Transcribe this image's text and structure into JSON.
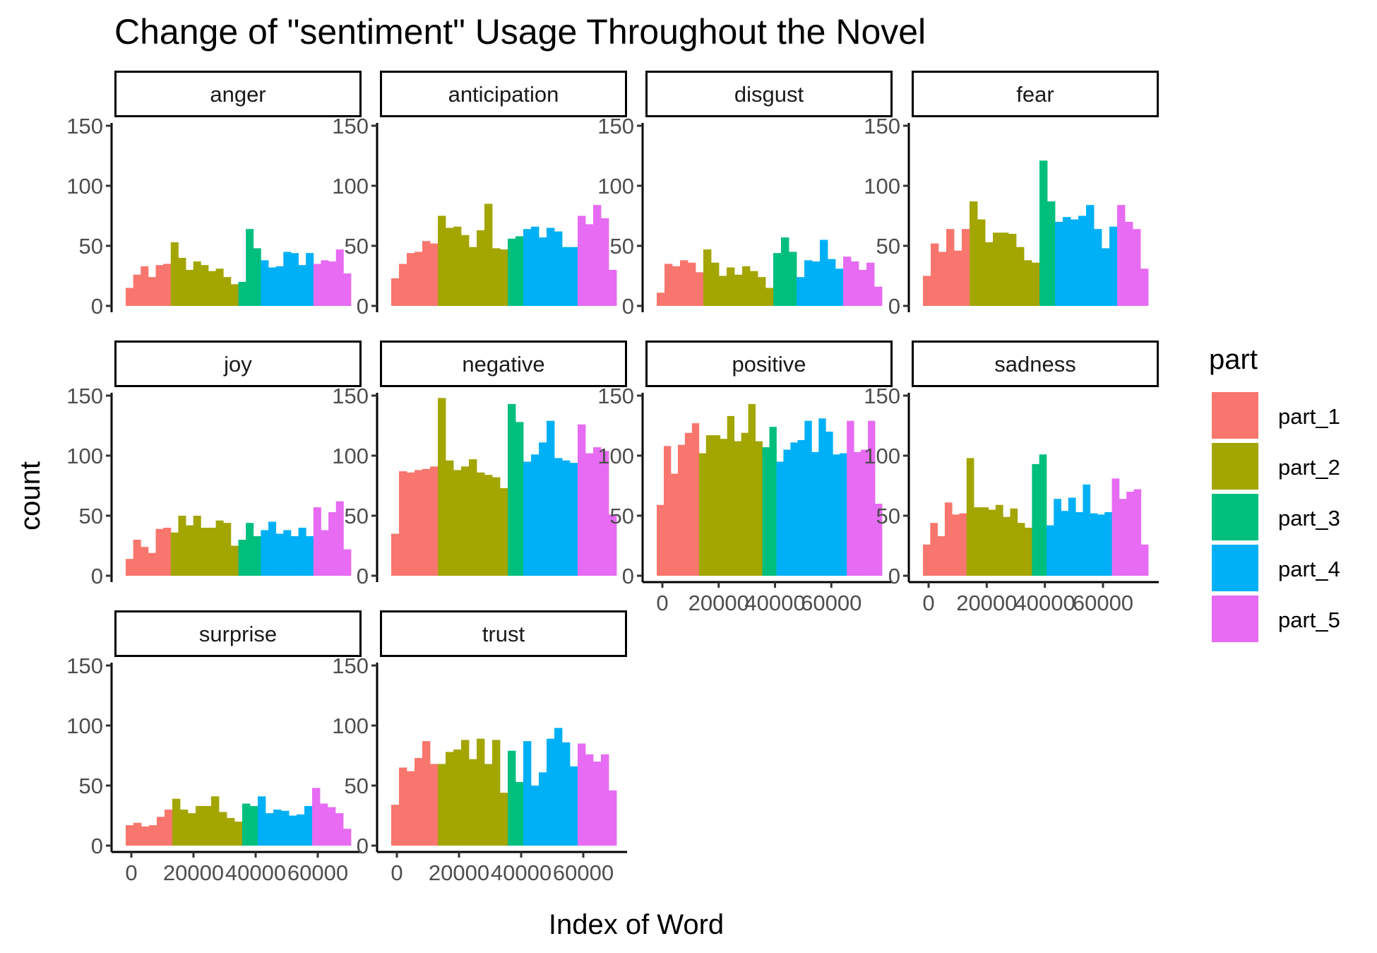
{
  "chart_data": {
    "type": "bar",
    "title": "Change of \"sentiment\" Usage Throughout the Novel",
    "xlabel": "Index of Word",
    "ylabel": "count",
    "ylim": [
      0,
      150
    ],
    "xlim": [
      0,
      75000
    ],
    "y_ticks": [
      0,
      50,
      100,
      150
    ],
    "x_ticks": [
      0,
      20000,
      40000,
      60000
    ],
    "x_tick_labels": [
      "0",
      "20000",
      "40000",
      "60000"
    ],
    "bin_width": 2500,
    "grid": false,
    "legend": {
      "title": "part",
      "position": "right",
      "entries": [
        "part_1",
        "part_2",
        "part_3",
        "part_4",
        "part_5"
      ]
    },
    "colors": {
      "part_1": "#F8766D",
      "part_2": "#A3A500",
      "part_3": "#00BF7D",
      "part_4": "#00B0F6",
      "part_5": "#E76BF3"
    },
    "panels": [
      {
        "name": "anger",
        "values": [
          15,
          26,
          33,
          24,
          34,
          35,
          53,
          40,
          30,
          37,
          34,
          29,
          31,
          24,
          18,
          20,
          64,
          48,
          38,
          32,
          33,
          45,
          44,
          34,
          44,
          35,
          38,
          37,
          47,
          27
        ],
        "parts": [
          1,
          1,
          1,
          1,
          1,
          1,
          2,
          2,
          2,
          2,
          2,
          2,
          2,
          2,
          2,
          3,
          3,
          3,
          4,
          4,
          4,
          4,
          4,
          4,
          4,
          5,
          5,
          5,
          5,
          5
        ]
      },
      {
        "name": "anticipation",
        "values": [
          23,
          35,
          44,
          45,
          54,
          52,
          75,
          65,
          66,
          59,
          49,
          63,
          85,
          48,
          47,
          56,
          58,
          64,
          66,
          57,
          65,
          62,
          49,
          49,
          75,
          68,
          84,
          73,
          30
        ],
        "parts": [
          1,
          1,
          1,
          1,
          1,
          1,
          2,
          2,
          2,
          2,
          2,
          2,
          2,
          2,
          2,
          3,
          3,
          4,
          4,
          4,
          4,
          4,
          4,
          4,
          5,
          5,
          5,
          5,
          5
        ]
      },
      {
        "name": "disgust",
        "values": [
          11,
          35,
          33,
          38,
          36,
          28,
          47,
          36,
          25,
          32,
          26,
          33,
          29,
          24,
          15,
          44,
          57,
          45,
          24,
          38,
          37,
          55,
          39,
          31,
          41,
          37,
          30,
          36,
          16
        ],
        "parts": [
          1,
          1,
          1,
          1,
          1,
          1,
          2,
          2,
          2,
          2,
          2,
          2,
          2,
          2,
          2,
          3,
          3,
          3,
          4,
          4,
          4,
          4,
          4,
          4,
          5,
          5,
          5,
          5,
          5
        ]
      },
      {
        "name": "fear",
        "values": [
          25,
          52,
          45,
          64,
          46,
          64,
          87,
          72,
          53,
          61,
          61,
          60,
          49,
          38,
          36,
          121,
          87,
          70,
          74,
          72,
          75,
          84,
          64,
          48,
          66,
          84,
          70,
          64,
          31
        ],
        "parts": [
          1,
          1,
          1,
          1,
          1,
          1,
          2,
          2,
          2,
          2,
          2,
          2,
          2,
          2,
          2,
          3,
          3,
          4,
          4,
          4,
          4,
          4,
          4,
          4,
          4,
          5,
          5,
          5,
          5
        ]
      },
      {
        "name": "joy",
        "values": [
          14,
          30,
          24,
          19,
          39,
          40,
          36,
          50,
          42,
          50,
          40,
          40,
          46,
          44,
          25,
          30,
          44,
          33,
          38,
          45,
          35,
          38,
          33,
          40,
          33,
          57,
          38,
          53,
          62,
          22
        ],
        "parts": [
          1,
          1,
          1,
          1,
          1,
          1,
          2,
          2,
          2,
          2,
          2,
          2,
          2,
          2,
          2,
          3,
          3,
          3,
          4,
          4,
          4,
          4,
          4,
          4,
          4,
          5,
          5,
          5,
          5,
          5
        ]
      },
      {
        "name": "negative",
        "values": [
          35,
          87,
          86,
          88,
          89,
          91,
          148,
          96,
          88,
          91,
          97,
          86,
          84,
          82,
          73,
          143,
          128,
          95,
          101,
          111,
          129,
          98,
          96,
          94,
          126,
          102,
          107,
          104,
          51
        ],
        "parts": [
          1,
          1,
          1,
          1,
          1,
          1,
          2,
          2,
          2,
          2,
          2,
          2,
          2,
          2,
          2,
          3,
          3,
          4,
          4,
          4,
          4,
          4,
          4,
          4,
          5,
          5,
          5,
          5,
          5
        ]
      },
      {
        "name": "positive",
        "values": [
          59,
          108,
          85,
          109,
          119,
          127,
          102,
          117,
          117,
          114,
          133,
          112,
          119,
          143,
          112,
          107,
          124,
          95,
          105,
          111,
          113,
          129,
          103,
          131,
          120,
          101,
          102,
          129,
          103,
          105,
          129,
          60
        ],
        "parts": [
          1,
          1,
          1,
          1,
          1,
          1,
          2,
          2,
          2,
          2,
          2,
          2,
          2,
          2,
          2,
          3,
          3,
          4,
          4,
          4,
          4,
          4,
          4,
          4,
          4,
          4,
          4,
          5,
          5,
          5,
          5,
          5
        ]
      },
      {
        "name": "sadness",
        "values": [
          26,
          44,
          33,
          61,
          51,
          52,
          98,
          57,
          57,
          55,
          59,
          49,
          56,
          44,
          40,
          93,
          101,
          42,
          64,
          54,
          65,
          53,
          76,
          52,
          51,
          53,
          81,
          64,
          70,
          72,
          26
        ],
        "parts": [
          1,
          1,
          1,
          1,
          1,
          1,
          2,
          2,
          2,
          2,
          2,
          2,
          2,
          2,
          2,
          3,
          3,
          4,
          4,
          4,
          4,
          4,
          4,
          4,
          4,
          4,
          5,
          5,
          5,
          5,
          5
        ]
      },
      {
        "name": "surprise",
        "values": [
          17,
          19,
          16,
          17,
          24,
          30,
          39,
          30,
          27,
          33,
          33,
          41,
          28,
          23,
          20,
          35,
          33,
          41,
          27,
          30,
          29,
          25,
          26,
          33,
          48,
          35,
          32,
          27,
          14
        ],
        "parts": [
          1,
          1,
          1,
          1,
          1,
          1,
          2,
          2,
          2,
          2,
          2,
          2,
          2,
          2,
          2,
          3,
          3,
          4,
          4,
          4,
          4,
          4,
          4,
          4,
          5,
          5,
          5,
          5,
          5
        ]
      },
      {
        "name": "trust",
        "values": [
          34,
          65,
          62,
          73,
          87,
          68,
          68,
          78,
          80,
          88,
          72,
          89,
          68,
          88,
          44,
          79,
          53,
          87,
          50,
          61,
          89,
          98,
          86,
          66,
          85,
          76,
          70,
          76,
          46
        ],
        "parts": [
          1,
          1,
          1,
          1,
          1,
          1,
          2,
          2,
          2,
          2,
          2,
          2,
          2,
          2,
          2,
          3,
          3,
          4,
          4,
          4,
          4,
          4,
          4,
          4,
          5,
          5,
          5,
          5,
          5
        ]
      }
    ]
  }
}
